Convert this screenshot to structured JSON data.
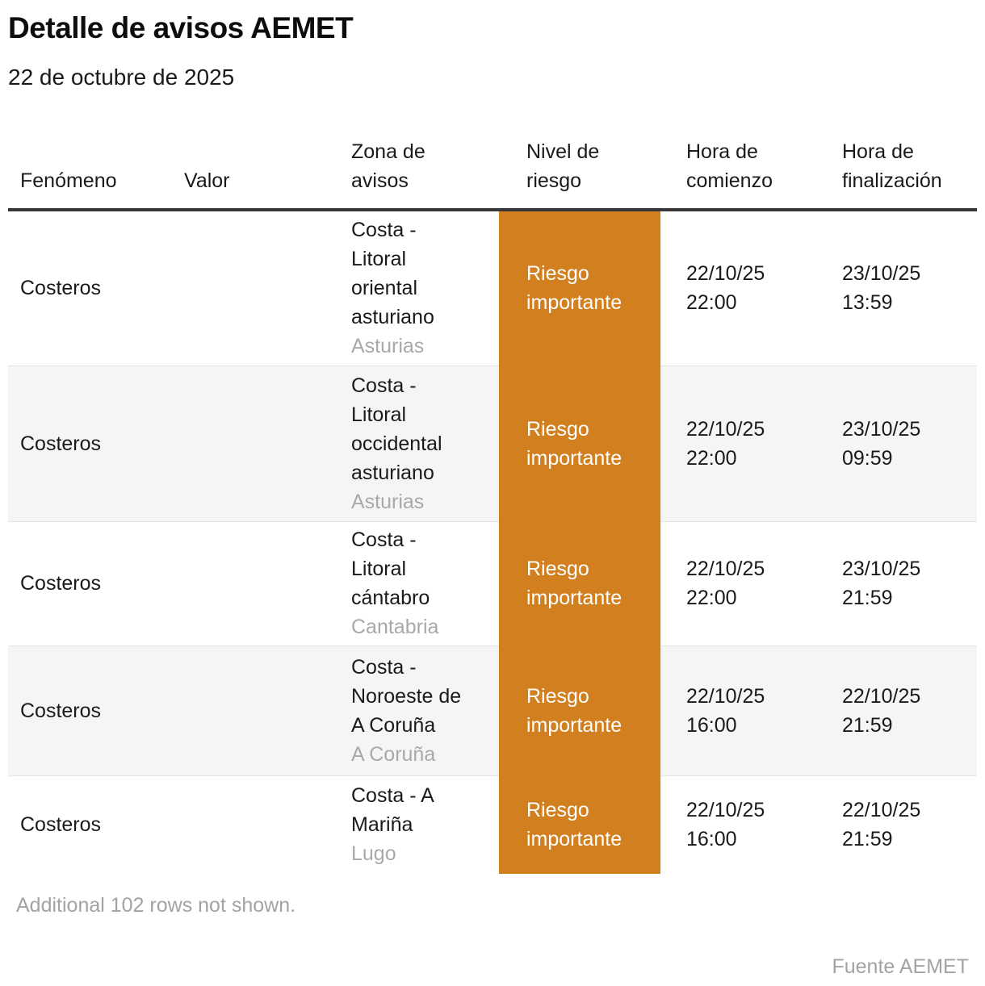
{
  "chart_data": {
    "type": "table",
    "title": "Detalle de avisos AEMET",
    "subtitle": "22 de octubre de 2025",
    "columns": [
      "Fenómeno",
      "Valor",
      "Zona de avisos",
      "Nivel de riesgo",
      "Hora de comienzo",
      "Hora de finalización"
    ],
    "rows": [
      {
        "fenomeno": "Costeros",
        "valor": "",
        "zona": "Costa - Litoral oriental asturiano",
        "region": "Asturias",
        "nivel": "Riesgo importante",
        "comienzo_date": "22/10/25",
        "comienzo_time": "22:00",
        "fin_date": "23/10/25",
        "fin_time": "13:59"
      },
      {
        "fenomeno": "Costeros",
        "valor": "",
        "zona": "Costa - Litoral occidental asturiano",
        "region": "Asturias",
        "nivel": "Riesgo importante",
        "comienzo_date": "22/10/25",
        "comienzo_time": "22:00",
        "fin_date": "23/10/25",
        "fin_time": "09:59"
      },
      {
        "fenomeno": "Costeros",
        "valor": "",
        "zona": "Costa - Litoral cántabro",
        "region": "Cantabria",
        "nivel": "Riesgo importante",
        "comienzo_date": "22/10/25",
        "comienzo_time": "22:00",
        "fin_date": "23/10/25",
        "fin_time": "21:59"
      },
      {
        "fenomeno": "Costeros",
        "valor": "",
        "zona": "Costa - Noroeste de A Coruña",
        "region": "A Coruña",
        "nivel": "Riesgo importante",
        "comienzo_date": "22/10/25",
        "comienzo_time": "16:00",
        "fin_date": "22/10/25",
        "fin_time": "21:59"
      },
      {
        "fenomeno": "Costeros",
        "valor": "",
        "zona": "Costa - A Mariña",
        "region": "Lugo",
        "nivel": "Riesgo importante",
        "comienzo_date": "22/10/25",
        "comienzo_time": "16:00",
        "fin_date": "22/10/25",
        "fin_time": "21:59"
      }
    ],
    "note": "Additional 102 rows not shown.",
    "source": "Fuente AEMET",
    "colors": {
      "risk_important_orange": "#D2801F",
      "header_rule": "#363636",
      "alt_row_bg": "#f5f5f5",
      "muted_text": "#a3a3a3"
    },
    "layout": {
      "legend_position": "none",
      "grid": "off"
    }
  }
}
